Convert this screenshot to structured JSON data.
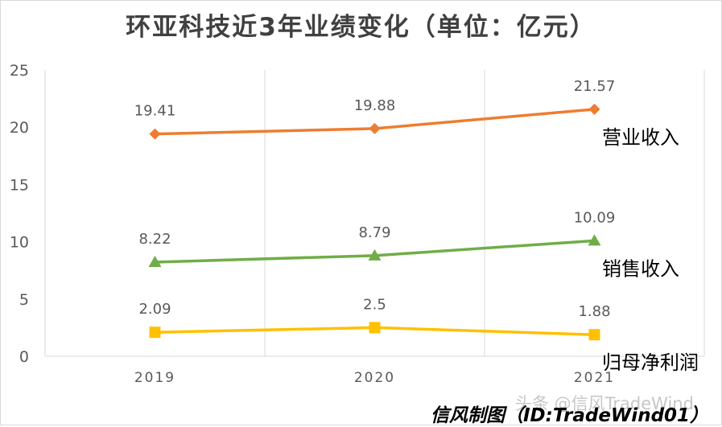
{
  "chart_data": {
    "type": "line",
    "title": "环亚科技近3年业绩变化（单位：亿元）",
    "categories": [
      "2019",
      "2020",
      "2021"
    ],
    "ylim": [
      0,
      25
    ],
    "yticks": [
      "0",
      "5",
      "10",
      "15",
      "20",
      "25"
    ],
    "grid": "vertical",
    "legend": "right, inline series labels",
    "series": [
      {
        "name": "营业收入",
        "values": [
          19.41,
          19.88,
          21.57
        ],
        "labels": [
          "19.41",
          "19.88",
          "21.57"
        ],
        "color": "#ED7D31",
        "marker": "diamond"
      },
      {
        "name": "销售收入",
        "values": [
          8.22,
          8.79,
          10.09
        ],
        "labels": [
          "8.22",
          "8.79",
          "10.09"
        ],
        "color": "#70AD47",
        "marker": "triangle"
      },
      {
        "name": "归母净利润",
        "values": [
          2.09,
          2.5,
          1.88
        ],
        "labels": [
          "2.09",
          "2.5",
          "1.88"
        ],
        "color": "#FFC000",
        "marker": "square"
      }
    ]
  },
  "footer": {
    "credit": "信风制图（ID:TradeWind01）",
    "watermark": "头条 @信风TradeWind"
  }
}
